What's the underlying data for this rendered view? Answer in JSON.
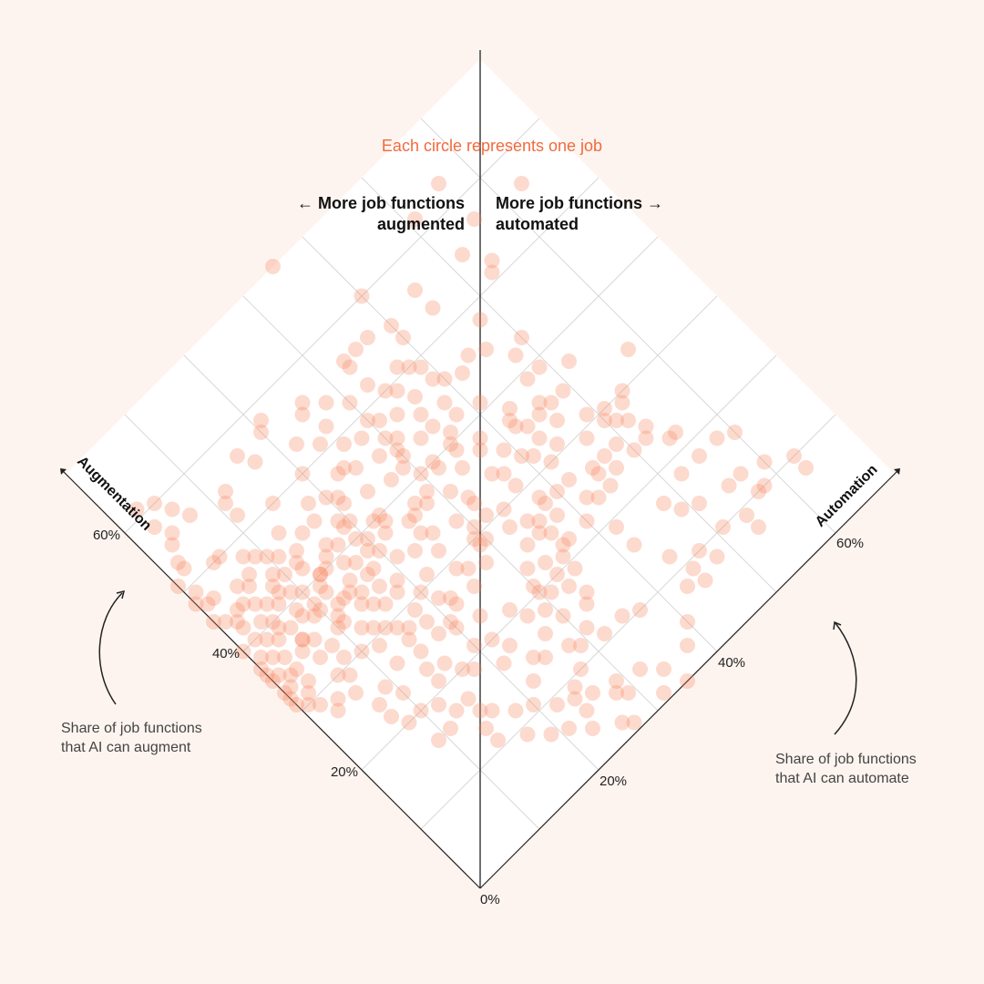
{
  "chart_data": {
    "type": "scatter",
    "title": "Each circle represents one job",
    "header_left": [
      "← More job functions",
      "augmented"
    ],
    "header_right": [
      "More job functions →",
      "automated"
    ],
    "axis_left": "Augmentation",
    "axis_right": "Automation",
    "note_left": [
      "Share of job functions",
      "that AI can augment"
    ],
    "note_right": [
      "Share of job functions",
      "that AI can automate"
    ],
    "ticks_left": [
      "60%",
      "40%",
      "20%"
    ],
    "ticks_right": [
      "60%",
      "40%",
      "20%"
    ],
    "origin_label": "0%",
    "tick_values": [
      60,
      40,
      20
    ],
    "axis_range": [
      0,
      70
    ],
    "grid": true,
    "x_label": "Share of job functions that AI can augment (%)",
    "y_label": "Share of job functions that AI can automate (%)",
    "points": [
      [
        53,
        2
      ],
      [
        51,
        0
      ],
      [
        48,
        0
      ],
      [
        52,
        2
      ],
      [
        47,
        1
      ],
      [
        49,
        1
      ],
      [
        55,
        3
      ],
      [
        45,
        0
      ],
      [
        39,
        5
      ],
      [
        46,
        5
      ],
      [
        48,
        8
      ],
      [
        43,
        2
      ],
      [
        47,
        2
      ],
      [
        40,
        0
      ],
      [
        44,
        9
      ],
      [
        36,
        6
      ],
      [
        40,
        10
      ],
      [
        55,
        17
      ],
      [
        52,
        11
      ],
      [
        47,
        13
      ],
      [
        44,
        1
      ],
      [
        36,
        0
      ],
      [
        50,
        6
      ],
      [
        40,
        2
      ],
      [
        44,
        3
      ],
      [
        42,
        2
      ],
      [
        57,
        20
      ],
      [
        56,
        26
      ],
      [
        43,
        8
      ],
      [
        45,
        15
      ],
      [
        40,
        13
      ],
      [
        38,
        8
      ],
      [
        36,
        6
      ],
      [
        34,
        2
      ],
      [
        44,
        4
      ],
      [
        41,
        7
      ],
      [
        37,
        10
      ],
      [
        50,
        5
      ],
      [
        40,
        14
      ],
      [
        40,
        13
      ],
      [
        38,
        12
      ],
      [
        34,
        10
      ],
      [
        37,
        9
      ],
      [
        42,
        8
      ],
      [
        43,
        12
      ],
      [
        46,
        10
      ],
      [
        39,
        12
      ],
      [
        44,
        13
      ],
      [
        37,
        15
      ],
      [
        38,
        17
      ],
      [
        40,
        19
      ],
      [
        42,
        16
      ],
      [
        43,
        19
      ],
      [
        36,
        13
      ],
      [
        35,
        11
      ],
      [
        39,
        16
      ],
      [
        42,
        20
      ],
      [
        45,
        17
      ],
      [
        40,
        22
      ],
      [
        38,
        22
      ],
      [
        40,
        23
      ],
      [
        34,
        11
      ],
      [
        36,
        14
      ],
      [
        36,
        18
      ],
      [
        38,
        19
      ],
      [
        41,
        15
      ],
      [
        45,
        21
      ],
      [
        47,
        18
      ],
      [
        51,
        24
      ],
      [
        52,
        26
      ],
      [
        54,
        28
      ],
      [
        53,
        22
      ],
      [
        50,
        20
      ],
      [
        47,
        23
      ],
      [
        49,
        26
      ],
      [
        50,
        15
      ],
      [
        46,
        20
      ],
      [
        37,
        20
      ],
      [
        36,
        17
      ],
      [
        33,
        19
      ],
      [
        39,
        20
      ],
      [
        43,
        24
      ],
      [
        47,
        24
      ],
      [
        35,
        21
      ],
      [
        33,
        15
      ],
      [
        31,
        13
      ],
      [
        42,
        19
      ],
      [
        46,
        25
      ],
      [
        48,
        28
      ],
      [
        42,
        27
      ],
      [
        45,
        28
      ],
      [
        38,
        27
      ],
      [
        37,
        26
      ],
      [
        37,
        25
      ],
      [
        44,
        21
      ],
      [
        35,
        15
      ],
      [
        34,
        17
      ],
      [
        30,
        14
      ],
      [
        32,
        18
      ],
      [
        34,
        23
      ],
      [
        35,
        25
      ],
      [
        34,
        26
      ],
      [
        30,
        20
      ],
      [
        27,
        15
      ],
      [
        29,
        18
      ],
      [
        31,
        22
      ],
      [
        26,
        22
      ],
      [
        25,
        20
      ],
      [
        28,
        21
      ],
      [
        28,
        26
      ],
      [
        27,
        28
      ],
      [
        30,
        29
      ],
      [
        32,
        25
      ],
      [
        29,
        25
      ],
      [
        33,
        29
      ],
      [
        31,
        32
      ],
      [
        34,
        32
      ],
      [
        37,
        34
      ],
      [
        36,
        31
      ],
      [
        39,
        32
      ],
      [
        40,
        32
      ],
      [
        40,
        35
      ],
      [
        43,
        30
      ],
      [
        42,
        29
      ],
      [
        40,
        30
      ],
      [
        38,
        29
      ],
      [
        45,
        31
      ],
      [
        47,
        36
      ],
      [
        49,
        30
      ],
      [
        48,
        31
      ],
      [
        46,
        30
      ],
      [
        50,
        34
      ],
      [
        43,
        33
      ],
      [
        44,
        30
      ],
      [
        39,
        35
      ],
      [
        37,
        37
      ],
      [
        41,
        41
      ],
      [
        33,
        32
      ],
      [
        31,
        30
      ],
      [
        30,
        34
      ],
      [
        26,
        36
      ],
      [
        28,
        33
      ],
      [
        27,
        35
      ],
      [
        22,
        36
      ],
      [
        29,
        30
      ],
      [
        29,
        29
      ],
      [
        27,
        38
      ],
      [
        25,
        35
      ],
      [
        25,
        33
      ],
      [
        24,
        36
      ],
      [
        22,
        33
      ],
      [
        20,
        33
      ],
      [
        21,
        35
      ],
      [
        22,
        37
      ],
      [
        23,
        31
      ],
      [
        18,
        33
      ],
      [
        19,
        31
      ],
      [
        20,
        30
      ],
      [
        21,
        30
      ],
      [
        19,
        35
      ],
      [
        16,
        34
      ],
      [
        23,
        43
      ],
      [
        22,
        40
      ],
      [
        29,
        47
      ],
      [
        26,
        45
      ],
      [
        31,
        44
      ],
      [
        32,
        41
      ],
      [
        35,
        43
      ],
      [
        33,
        43
      ],
      [
        38,
        43
      ],
      [
        37,
        42
      ],
      [
        36,
        42
      ],
      [
        36,
        46
      ],
      [
        39,
        47
      ],
      [
        43,
        50
      ],
      [
        39,
        49
      ],
      [
        35,
        47
      ],
      [
        33,
        46
      ],
      [
        31,
        49
      ],
      [
        30,
        54
      ],
      [
        35,
        45
      ],
      [
        29,
        53
      ],
      [
        29,
        50
      ],
      [
        24,
        50
      ],
      [
        24,
        47
      ],
      [
        22,
        54
      ],
      [
        25,
        53
      ],
      [
        27,
        52
      ],
      [
        26,
        47
      ],
      [
        28,
        51
      ],
      [
        23,
        45
      ],
      [
        24,
        52
      ],
      [
        22,
        55
      ],
      [
        26,
        49
      ],
      [
        33,
        58
      ],
      [
        37,
        52
      ],
      [
        35,
        49
      ],
      [
        30,
        51
      ],
      [
        42,
        48
      ],
      [
        45,
        46
      ],
      [
        52,
        54
      ],
      [
        57,
        56
      ],
      [
        56,
        63
      ],
      [
        55,
        52
      ],
      [
        51,
        53
      ],
      [
        63,
        56
      ],
      [
        62,
        51
      ],
      [
        48,
        48
      ],
      [
        46,
        40
      ],
      [
        46,
        44
      ],
      [
        45,
        42
      ],
      [
        42,
        38
      ],
      [
        44,
        38
      ],
      [
        49,
        39
      ],
      [
        47,
        39
      ],
      [
        53,
        45
      ],
      [
        56,
        45
      ],
      [
        55,
        40
      ],
      [
        53,
        40
      ],
      [
        56,
        37
      ],
      [
        56,
        35
      ],
      [
        55,
        33
      ],
      [
        56,
        33
      ],
      [
        60,
        40
      ],
      [
        70,
        35
      ],
      [
        33,
        40
      ],
      [
        30,
        42
      ],
      [
        27,
        42
      ],
      [
        18,
        52
      ],
      [
        18,
        55
      ],
      [
        18,
        58
      ],
      [
        13,
        57
      ],
      [
        13,
        55
      ],
      [
        12,
        60
      ],
      [
        17,
        60
      ],
      [
        15,
        49
      ],
      [
        17,
        48
      ],
      [
        14,
        51
      ],
      [
        10,
        51
      ],
      [
        12,
        44
      ],
      [
        19,
        42
      ],
      [
        16,
        42
      ],
      [
        9,
        45
      ],
      [
        9,
        54
      ],
      [
        7,
        54
      ],
      [
        10,
        58
      ],
      [
        10,
        63
      ],
      [
        10,
        47
      ],
      [
        8,
        48
      ],
      [
        25,
        45
      ],
      [
        24,
        42
      ],
      [
        10,
        57
      ],
      [
        8,
        63
      ],
      [
        7,
        45
      ],
      [
        8,
        43
      ],
      [
        5,
        40
      ],
      [
        3,
        38
      ],
      [
        3,
        34
      ],
      [
        1,
        32
      ],
      [
        4,
        29
      ],
      [
        0,
        35
      ],
      [
        1,
        27
      ],
      [
        2,
        26
      ],
      [
        4,
        23
      ],
      [
        6,
        21
      ],
      [
        7,
        19
      ],
      [
        9,
        17
      ],
      [
        11,
        14
      ],
      [
        13,
        14
      ],
      [
        15,
        15
      ],
      [
        17,
        13
      ],
      [
        16,
        11
      ],
      [
        16,
        9
      ],
      [
        20,
        8
      ],
      [
        22,
        7
      ],
      [
        24,
        7
      ],
      [
        27,
        6
      ],
      [
        28,
        4
      ],
      [
        27,
        3
      ],
      [
        29,
        2
      ],
      [
        30,
        1
      ],
      [
        32,
        3
      ],
      [
        31,
        2
      ],
      [
        33,
        1
      ],
      [
        35,
        1
      ],
      [
        38,
        1
      ],
      [
        37,
        2
      ],
      [
        35,
        0
      ],
      [
        33,
        0
      ],
      [
        32,
        0
      ],
      [
        31,
        0
      ],
      [
        36,
        3
      ],
      [
        34,
        3
      ],
      [
        37,
        0
      ],
      [
        39,
        3
      ],
      [
        30,
        6
      ],
      [
        29,
        7
      ],
      [
        25,
        9
      ],
      [
        23,
        10
      ],
      [
        20,
        10
      ],
      [
        19,
        12
      ],
      [
        17,
        15
      ],
      [
        14,
        16
      ],
      [
        12,
        18
      ],
      [
        11,
        20
      ],
      [
        9,
        22
      ],
      [
        9,
        25
      ],
      [
        7,
        26
      ],
      [
        6,
        29
      ],
      [
        5,
        32
      ],
      [
        5,
        28
      ],
      [
        6,
        24
      ],
      [
        8,
        24
      ],
      [
        10,
        27
      ],
      [
        13,
        22
      ],
      [
        14,
        25
      ],
      [
        16,
        27
      ],
      [
        17,
        21
      ],
      [
        19,
        18
      ],
      [
        20,
        17
      ],
      [
        22,
        16
      ],
      [
        23,
        14
      ],
      [
        21,
        14
      ],
      [
        26,
        12
      ],
      [
        25,
        15
      ],
      [
        29,
        12
      ],
      [
        30,
        10
      ],
      [
        31,
        8
      ],
      [
        33,
        6
      ],
      [
        33,
        8
      ],
      [
        35,
        7
      ],
      [
        38,
        6
      ],
      [
        40,
        5
      ],
      [
        41,
        4
      ],
      [
        42,
        6
      ],
      [
        43,
        5
      ],
      [
        38,
        4
      ],
      [
        35,
        5
      ],
      [
        32,
        12
      ],
      [
        28,
        16
      ],
      [
        27,
        18
      ],
      [
        24,
        20
      ],
      [
        23,
        23
      ],
      [
        21,
        26
      ],
      [
        19,
        27
      ],
      [
        18,
        29
      ],
      [
        16,
        30
      ],
      [
        15,
        33
      ],
      [
        13,
        31
      ],
      [
        12,
        29
      ],
      [
        11,
        35
      ],
      [
        10,
        37
      ],
      [
        11,
        32
      ],
      [
        13,
        28
      ],
      [
        15,
        24
      ],
      [
        18,
        23
      ],
      [
        20,
        22
      ],
      [
        21,
        20
      ],
      [
        25,
        18
      ],
      [
        27,
        22
      ],
      [
        26,
        25
      ],
      [
        29,
        15
      ],
      [
        32,
        16
      ],
      [
        34,
        14
      ],
      [
        36,
        12
      ],
      [
        38,
        10
      ],
      [
        39,
        8
      ],
      [
        41,
        9
      ],
      [
        43,
        10
      ],
      [
        45,
        11
      ],
      [
        47,
        9
      ],
      [
        46,
        7
      ],
      [
        45,
        6
      ],
      [
        42,
        12
      ],
      [
        41,
        17
      ],
      [
        39,
        23
      ],
      [
        37,
        28
      ],
      [
        34,
        36
      ],
      [
        31,
        37
      ],
      [
        28,
        38
      ],
      [
        27,
        40
      ],
      [
        25,
        38
      ],
      [
        33,
        37
      ],
      [
        35,
        39
      ],
      [
        38,
        38
      ],
      [
        41,
        36
      ],
      [
        43,
        35
      ],
      [
        45,
        35
      ],
      [
        47,
        33
      ],
      [
        49,
        35
      ],
      [
        50,
        38
      ],
      [
        51,
        37
      ],
      [
        52,
        33
      ],
      [
        52,
        30
      ],
      [
        55,
        25
      ],
      [
        58,
        21
      ],
      [
        57,
        16
      ],
      [
        55,
        12
      ],
      [
        54,
        11
      ],
      [
        56,
        7
      ],
      [
        58,
        6
      ],
      [
        60,
        5
      ],
      [
        61,
        3
      ],
      [
        58,
        3
      ],
      [
        56,
        4
      ]
    ]
  }
}
